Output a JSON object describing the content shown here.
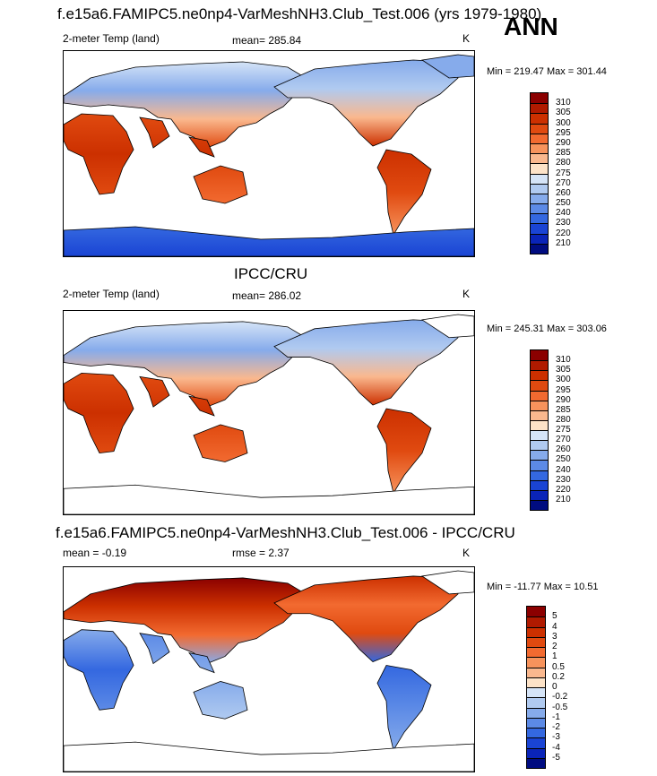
{
  "season": "ANN",
  "panels": [
    {
      "id": "model",
      "title": "f.e15a6.FAMIPC5.ne0np4-VarMeshNH3.Club_Test.006 (yrs 1979-1980)",
      "left_label": "2-meter Temp (land)",
      "center_label": "mean= 285.84",
      "units": "K",
      "minmax": "Min = 219.47 Max = 301.44",
      "colorbar": {
        "labels": [
          "310",
          "305",
          "300",
          "295",
          "290",
          "285",
          "280",
          "275",
          "270",
          "260",
          "250",
          "240",
          "230",
          "220",
          "210"
        ],
        "colors": [
          "#8B0000",
          "#B01A00",
          "#CC3000",
          "#E04A10",
          "#F26A30",
          "#F7935C",
          "#FAB88E",
          "#FDE3C8",
          "#D5E4F7",
          "#B0CAF0",
          "#86ABEB",
          "#5C8AE6",
          "#3468E0",
          "#1A44D4",
          "#0A24B8",
          "#000C80"
        ]
      }
    },
    {
      "id": "obs",
      "title": "IPCC/CRU",
      "left_label": "2-meter Temp (land)",
      "center_label": "mean= 286.02",
      "units": "K",
      "minmax": "Min = 245.31 Max = 303.06",
      "colorbar": {
        "labels": [
          "310",
          "305",
          "300",
          "295",
          "290",
          "285",
          "280",
          "275",
          "270",
          "260",
          "250",
          "240",
          "230",
          "220",
          "210"
        ],
        "colors": [
          "#8B0000",
          "#B01A00",
          "#CC3000",
          "#E04A10",
          "#F26A30",
          "#F7935C",
          "#FAB88E",
          "#FDE3C8",
          "#D5E4F7",
          "#B0CAF0",
          "#86ABEB",
          "#5C8AE6",
          "#3468E0",
          "#1A44D4",
          "#0A24B8",
          "#000C80"
        ]
      }
    },
    {
      "id": "diff",
      "title": "f.e15a6.FAMIPC5.ne0np4-VarMeshNH3.Club_Test.006 - IPCC/CRU",
      "left_label": "mean =  -0.19",
      "center_label": "rmse =   2.37",
      "units": "K",
      "minmax": "Min = -11.77 Max =  10.51",
      "colorbar": {
        "labels": [
          "5",
          "4",
          "3",
          "2",
          "1",
          "0.5",
          "0.2",
          "0",
          "-0.2",
          "-0.5",
          "-1",
          "-2",
          "-3",
          "-4",
          "-5"
        ],
        "colors": [
          "#8B0000",
          "#B01A00",
          "#CC3000",
          "#E04A10",
          "#F26A30",
          "#F7935C",
          "#FAB88E",
          "#FDE3C8",
          "#D5E4F7",
          "#B0CAF0",
          "#86ABEB",
          "#5C8AE6",
          "#3468E0",
          "#1A44D4",
          "#0A24B8",
          "#000C80"
        ]
      }
    }
  ]
}
